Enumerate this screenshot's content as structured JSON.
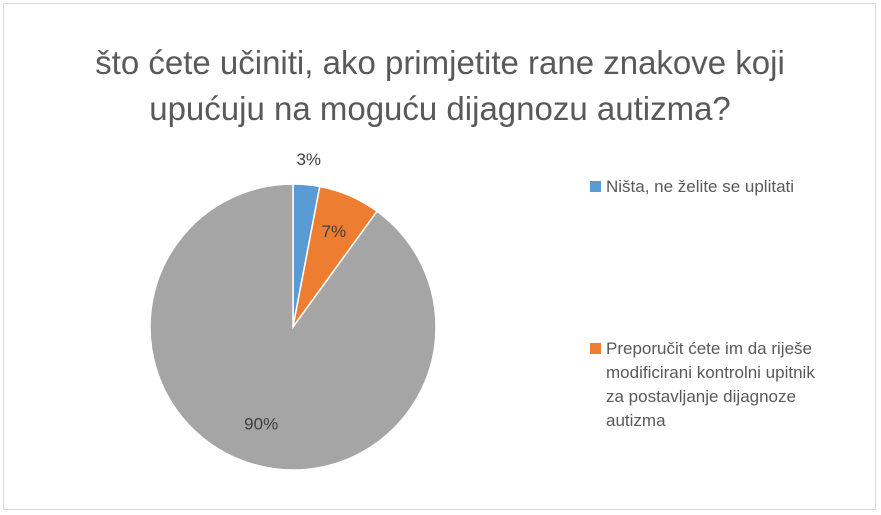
{
  "chart_data": {
    "type": "pie",
    "title": "što ćete učiniti, ako primjetite rane znakove koji upućuju na moguću dijagnozu autizma?",
    "categories": [
      "Ništa, ne želite se uplitati",
      "Preporučit ćete im da riješe modificirani kontrolni upitnik za postavljanje dijagnoze autizma",
      null
    ],
    "values": [
      3,
      7,
      90
    ],
    "value_labels": [
      "3%",
      "7%",
      "90%"
    ],
    "colors": [
      "#5b9bd5",
      "#ed7d31",
      "#a5a5a5"
    ],
    "legend": "right"
  }
}
